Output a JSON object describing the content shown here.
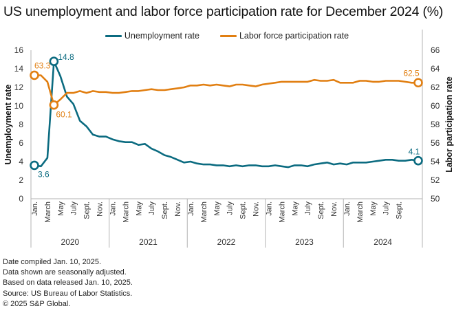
{
  "colors": {
    "unemployment": "#0b6b80",
    "participation": "#e17f12",
    "axis": "#b3b3b3"
  },
  "chart_data": {
    "type": "line",
    "title": "US unemployment and labor force participation rate for December 2024 (%)",
    "legend": {
      "placement": "top-center",
      "entries": [
        "Unemployment rate",
        "Labor force participation rate"
      ]
    },
    "ylabel_left": "Unemployment rate",
    "ylabel_right": "Labor participation rate",
    "ylim_left": [
      0,
      16
    ],
    "ylim_right": [
      50,
      66
    ],
    "yticks_left": [
      "0",
      "2",
      "4",
      "6",
      "8",
      "10",
      "12",
      "14",
      "16"
    ],
    "yticks_right": [
      "50",
      "52",
      "54",
      "56",
      "58",
      "60",
      "62",
      "64",
      "66"
    ],
    "month_labels": [
      "Jan.",
      "March",
      "May",
      "July",
      "Sept.",
      "Nov."
    ],
    "years": [
      "2020",
      "2021",
      "2022",
      "2023",
      "2024"
    ],
    "x_start": "Jan. 2020",
    "x_end": "Dec. 2024",
    "series": [
      {
        "name": "Unemployment rate",
        "axis": "left",
        "values": [
          3.6,
          3.5,
          4.4,
          14.8,
          13.2,
          11.0,
          10.2,
          8.4,
          7.8,
          6.9,
          6.7,
          6.7,
          6.4,
          6.2,
          6.1,
          6.1,
          5.8,
          5.9,
          5.4,
          5.1,
          4.7,
          4.5,
          4.2,
          3.9,
          4.0,
          3.8,
          3.7,
          3.7,
          3.6,
          3.6,
          3.5,
          3.6,
          3.5,
          3.6,
          3.6,
          3.5,
          3.5,
          3.6,
          3.5,
          3.4,
          3.6,
          3.6,
          3.5,
          3.7,
          3.8,
          3.9,
          3.7,
          3.8,
          3.7,
          3.9,
          3.9,
          3.9,
          4.0,
          4.1,
          4.2,
          4.2,
          4.1,
          4.1,
          4.2,
          4.1
        ],
        "annotations": [
          {
            "index": 0,
            "label": "3.6"
          },
          {
            "index": 3,
            "label": "14.8"
          },
          {
            "index": 59,
            "label": "4.1"
          }
        ]
      },
      {
        "name": "Labor force participation rate",
        "axis": "right",
        "values": [
          63.3,
          63.3,
          62.6,
          60.1,
          60.7,
          61.4,
          61.4,
          61.6,
          61.4,
          61.6,
          61.5,
          61.5,
          61.4,
          61.4,
          61.5,
          61.6,
          61.6,
          61.7,
          61.8,
          61.7,
          61.7,
          61.8,
          61.9,
          62.0,
          62.2,
          62.2,
          62.3,
          62.2,
          62.3,
          62.2,
          62.1,
          62.3,
          62.3,
          62.2,
          62.1,
          62.3,
          62.4,
          62.5,
          62.6,
          62.6,
          62.6,
          62.6,
          62.6,
          62.8,
          62.7,
          62.7,
          62.8,
          62.5,
          62.5,
          62.5,
          62.7,
          62.7,
          62.6,
          62.6,
          62.7,
          62.7,
          62.7,
          62.6,
          62.5,
          62.5
        ],
        "annotations": [
          {
            "index": 0,
            "label": "63.3"
          },
          {
            "index": 3,
            "label": "60.1"
          },
          {
            "index": 59,
            "label": "62.5"
          }
        ]
      }
    ]
  },
  "notes": [
    "Date compiled Jan. 10, 2025.",
    "Data shown are seasonally adjusted.",
    "Based on data released Jan. 10, 2025.",
    "Source: US Bureau of Labor Statistics.",
    "© 2025 S&P Global."
  ]
}
